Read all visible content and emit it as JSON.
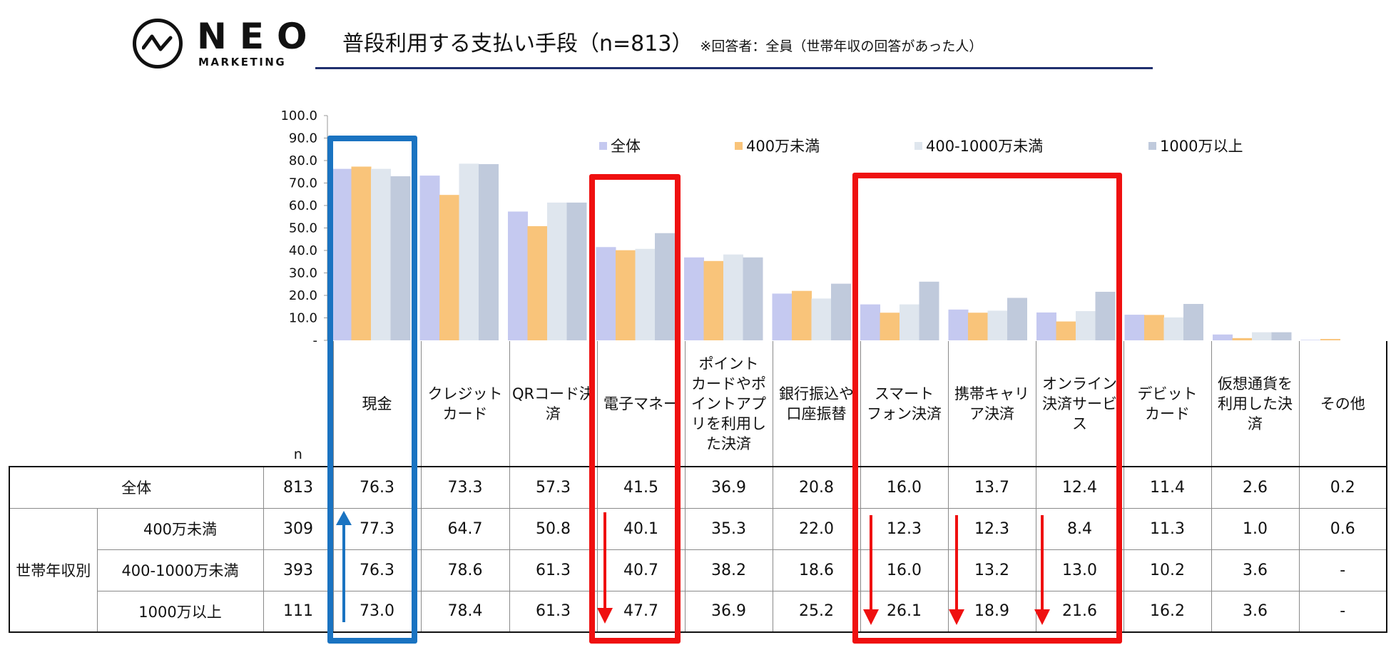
{
  "logo": {
    "name": "NEO",
    "sub": "MARKETING"
  },
  "title": {
    "main": "普段利用する支払い手段（n=813）",
    "note": "※回答者：全員（世帯年収の回答があった人）"
  },
  "colors": {
    "all": "#c5c9f0",
    "under400": "#f9c47a",
    "mid": "#dfe6ee",
    "over1000": "#c0cadc",
    "highlight_blue": "#1a73c1",
    "highlight_red": "#ef1010",
    "title_rule": "#1f2f6e"
  },
  "chart_data": {
    "type": "bar",
    "categories": [
      "現金",
      "クレジットカード",
      "QRコード決済",
      "電子マネー",
      "ポイントカードやポイントアプリを利用した決済",
      "銀行振込や口座振替",
      "スマートフォン決済",
      "携帯キャリア決済",
      "オンライン決済サービス",
      "デビットカード",
      "仮想通貨を利用した決済",
      "その他"
    ],
    "series": [
      {
        "name": "全体",
        "values": [
          76.3,
          73.3,
          57.3,
          41.5,
          36.9,
          20.8,
          16.0,
          13.7,
          12.4,
          11.4,
          2.6,
          0.2
        ]
      },
      {
        "name": "400万未満",
        "values": [
          77.3,
          64.7,
          50.8,
          40.1,
          35.3,
          22.0,
          12.3,
          12.3,
          8.4,
          11.3,
          1.0,
          0.6
        ]
      },
      {
        "name": "400-1000万未満",
        "values": [
          76.3,
          78.6,
          61.3,
          40.7,
          38.2,
          18.6,
          16.0,
          13.2,
          13.0,
          10.2,
          3.6,
          0
        ]
      },
      {
        "name": "1000万以上",
        "values": [
          73.0,
          78.4,
          61.3,
          47.7,
          36.9,
          25.2,
          26.1,
          18.9,
          21.6,
          16.2,
          3.6,
          0
        ]
      }
    ],
    "yticks": [
      "100.0",
      "90.0",
      "80.0",
      "70.0",
      "60.0",
      "50.0",
      "40.0",
      "30.0",
      "20.0",
      "10.0",
      "-"
    ],
    "ylim": [
      0,
      100
    ],
    "legend_position": "top-right"
  },
  "table": {
    "n_header": "n",
    "col_headers": [
      "現金",
      "クレジット\nカード",
      "QRコード決\n済",
      "電子マネー",
      "ポイント\nカードやポ\nイントアプ\nリを利用し\nた決済",
      "銀行振込や\n口座振替",
      "スマート\nフォン決済",
      "携帯キャリ\nア決済",
      "オンライン\n決済サービ\nス",
      "デビット\nカード",
      "仮想通貨を\n利用した決\n済",
      "その他"
    ],
    "group_label": "世帯年収別",
    "rows": [
      {
        "label": "全体",
        "n": "813",
        "values": [
          "76.3",
          "73.3",
          "57.3",
          "41.5",
          "36.9",
          "20.8",
          "16.0",
          "13.7",
          "12.4",
          "11.4",
          "2.6",
          "0.2"
        ]
      },
      {
        "label": "400万未満",
        "n": "309",
        "values": [
          "77.3",
          "64.7",
          "50.8",
          "40.1",
          "35.3",
          "22.0",
          "12.3",
          "12.3",
          "8.4",
          "11.3",
          "1.0",
          "0.6"
        ]
      },
      {
        "label": "400-1000万未満",
        "n": "393",
        "values": [
          "76.3",
          "78.6",
          "61.3",
          "40.7",
          "38.2",
          "18.6",
          "16.0",
          "13.2",
          "13.0",
          "10.2",
          "3.6",
          "-"
        ]
      },
      {
        "label": "1000万以上",
        "n": "111",
        "values": [
          "73.0",
          "78.4",
          "61.3",
          "47.7",
          "36.9",
          "25.2",
          "26.1",
          "18.9",
          "21.6",
          "16.2",
          "3.6",
          "-"
        ]
      }
    ]
  }
}
